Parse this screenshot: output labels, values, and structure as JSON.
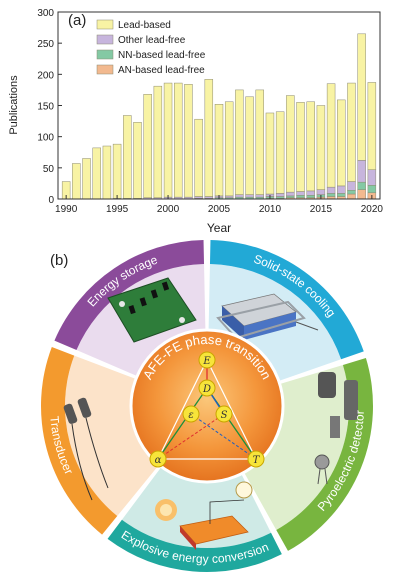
{
  "chart_data": {
    "type": "bar",
    "stacked": true,
    "panel_label": "(a)",
    "xlabel": "Year",
    "ylabel": "Publications",
    "ylim": [
      0,
      300
    ],
    "yticks": [
      0,
      50,
      100,
      150,
      200,
      250,
      300
    ],
    "xticks": [
      1990,
      1995,
      2000,
      2005,
      2010,
      2015,
      2020
    ],
    "legend_position": "top-left",
    "categories": [
      1990,
      1991,
      1992,
      1993,
      1994,
      1995,
      1996,
      1997,
      1998,
      1999,
      2000,
      2001,
      2002,
      2003,
      2004,
      2005,
      2006,
      2007,
      2008,
      2009,
      2010,
      2011,
      2012,
      2013,
      2014,
      2015,
      2016,
      2017,
      2018,
      2019,
      2020
    ],
    "series": [
      {
        "name": "AN-based lead-free",
        "color": "#f2b98f",
        "values": [
          0,
          0,
          0,
          0,
          0,
          0,
          0,
          0,
          0,
          0,
          0,
          0,
          0,
          0,
          0,
          0,
          0,
          0,
          0,
          0,
          1,
          1,
          2,
          2,
          2,
          3,
          4,
          4,
          8,
          15,
          10
        ]
      },
      {
        "name": "NN-based lead-free",
        "color": "#84c9a4",
        "values": [
          0,
          0,
          0,
          0,
          0,
          0,
          0,
          0,
          0,
          0,
          0,
          0,
          0,
          1,
          1,
          2,
          2,
          3,
          3,
          3,
          3,
          3,
          3,
          4,
          4,
          4,
          5,
          5,
          6,
          12,
          12
        ]
      },
      {
        "name": "Other lead-free",
        "color": "#c7b5dd",
        "values": [
          0,
          0,
          0,
          0,
          0,
          1,
          1,
          1,
          2,
          2,
          3,
          3,
          3,
          3,
          3,
          3,
          3,
          4,
          4,
          4,
          4,
          5,
          6,
          6,
          7,
          8,
          10,
          12,
          14,
          35,
          25
        ]
      },
      {
        "name": "Lead-based",
        "color": "#f8f3a4",
        "values": [
          28,
          57,
          65,
          82,
          85,
          87,
          133,
          122,
          166,
          179,
          183,
          183,
          181,
          124,
          188,
          147,
          151,
          168,
          157,
          168,
          130,
          131,
          155,
          143,
          143,
          135,
          166,
          138,
          158,
          203,
          140
        ]
      }
    ]
  },
  "wheel": {
    "panel_label": "(b)",
    "center_title": "AFE-FE phase transition",
    "phases": [
      "E",
      "D",
      "ε",
      "S",
      "α",
      "T"
    ],
    "segments": [
      {
        "label": "Energy storage",
        "color": "#8b4b9a",
        "bg": "#eadcee"
      },
      {
        "label": "Solid-state cooling",
        "color": "#22a9d6",
        "bg": "#d3ecf5"
      },
      {
        "label": "Pyroelectric detector",
        "color": "#78b53f",
        "bg": "#dfeecd"
      },
      {
        "label": "Explosive energy conversion",
        "color": "#1fa89e",
        "bg": "#cfeae6"
      },
      {
        "label": "Transducer",
        "color": "#f39a2e",
        "bg": "#fce3c9"
      }
    ]
  }
}
